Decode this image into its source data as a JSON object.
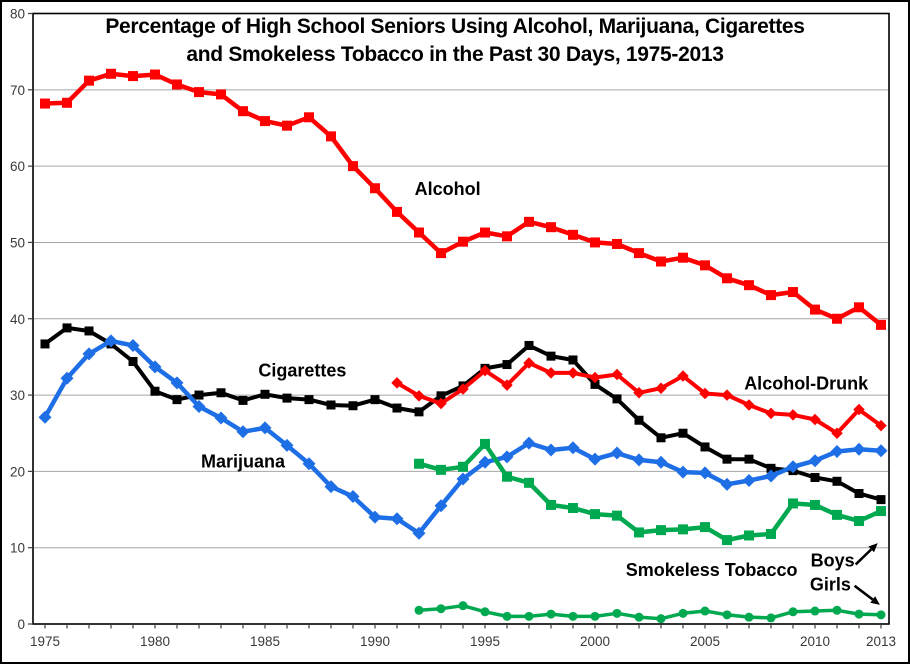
{
  "title": {
    "line1": "Percentage of High School Seniors Using Alcohol, Marijuana, Cigarettes",
    "line2": "and Smokeless Tobacco in the Past 30 Days, 1975-2013"
  },
  "chart_data": {
    "type": "line",
    "title": "Percentage of High School Seniors Using Alcohol, Marijuana, Cigarettes and Smokeless Tobacco in the Past 30 Days, 1975-2013",
    "xlabel": "",
    "ylabel": "",
    "xlim": [
      1975,
      2013
    ],
    "ylim": [
      0,
      80
    ],
    "xticks": [
      1975,
      1980,
      1985,
      1990,
      1995,
      2000,
      2005,
      2010,
      2013
    ],
    "yticks": [
      0,
      10,
      20,
      30,
      40,
      50,
      60,
      70,
      80
    ],
    "grid": true,
    "legend_position": "inline-labels",
    "colors": {
      "alcohol": "#FF0000",
      "cigarettes": "#000000",
      "marijuana": "#1E6FE6",
      "alcohol_drunk": "#FF0000",
      "smokeless": "#00A950",
      "axis_text": "#3A3A3A",
      "gridline": "#A6A6A6",
      "annotation_text": "#000000"
    },
    "series": [
      {
        "name": "Alcohol",
        "color_key": "alcohol",
        "marker": "square",
        "marker_size": 10,
        "line_width": 4.5,
        "start_year": 1975,
        "values": [
          68.2,
          68.3,
          71.2,
          72.1,
          71.8,
          72.0,
          70.7,
          69.7,
          69.4,
          67.2,
          65.9,
          65.3,
          66.4,
          63.9,
          60.0,
          57.1,
          54.0,
          51.3,
          48.6,
          50.1,
          51.3,
          50.8,
          52.7,
          52.0,
          51.0,
          50.0,
          49.8,
          48.6,
          47.5,
          48.0,
          47.0,
          45.3,
          44.4,
          43.1,
          43.5,
          41.2,
          40.0,
          41.5,
          39.2
        ]
      },
      {
        "name": "Cigarettes",
        "color_key": "cigarettes",
        "marker": "square",
        "marker_size": 9,
        "line_width": 4,
        "start_year": 1975,
        "values": [
          36.7,
          38.8,
          38.4,
          36.7,
          34.4,
          30.5,
          29.4,
          30.0,
          30.3,
          29.3,
          30.1,
          29.6,
          29.4,
          28.7,
          28.6,
          29.4,
          28.3,
          27.8,
          29.9,
          31.2,
          33.5,
          34.0,
          36.5,
          35.1,
          34.6,
          31.4,
          29.5,
          26.7,
          24.4,
          25.0,
          23.2,
          21.6,
          21.6,
          20.4,
          20.1,
          19.2,
          18.7,
          17.1,
          16.3
        ]
      },
      {
        "name": "Marijuana",
        "color_key": "marijuana",
        "marker": "diamond",
        "marker_size": 13,
        "line_width": 4.5,
        "start_year": 1975,
        "values": [
          27.1,
          32.2,
          35.4,
          37.1,
          36.5,
          33.7,
          31.6,
          28.5,
          27.0,
          25.2,
          25.7,
          23.4,
          21.0,
          18.0,
          16.7,
          14.0,
          13.8,
          11.9,
          15.5,
          19.0,
          21.2,
          21.9,
          23.7,
          22.8,
          23.1,
          21.6,
          22.4,
          21.5,
          21.2,
          19.9,
          19.8,
          18.3,
          18.8,
          19.4,
          20.6,
          21.4,
          22.6,
          22.9,
          22.7
        ]
      },
      {
        "name": "Alcohol-Drunk",
        "color_key": "alcohol_drunk",
        "marker": "diamond",
        "marker_size": 11.5,
        "line_width": 4,
        "start_year": 1991,
        "values": [
          31.6,
          29.9,
          28.9,
          30.8,
          33.2,
          31.3,
          34.2,
          32.9,
          32.9,
          32.3,
          32.7,
          30.3,
          30.9,
          32.5,
          30.2,
          30.0,
          28.7,
          27.6,
          27.4,
          26.8,
          25.0,
          28.1,
          26.0
        ]
      },
      {
        "name": "Smokeless Tobacco (Boys)",
        "color_key": "smokeless",
        "marker": "square",
        "marker_size": 10,
        "line_width": 4.5,
        "start_year": 1992,
        "values": [
          21.0,
          20.2,
          20.6,
          23.6,
          19.3,
          18.5,
          15.6,
          15.2,
          14.4,
          14.2,
          12.0,
          12.3,
          12.4,
          12.7,
          11.0,
          11.6,
          11.8,
          15.8,
          15.6,
          14.3,
          13.5,
          14.8
        ]
      },
      {
        "name": "Smokeless Tobacco (Girls)",
        "color_key": "smokeless",
        "marker": "circle",
        "marker_size": 9,
        "line_width": 3.5,
        "start_year": 1992,
        "values": [
          1.8,
          2.0,
          2.4,
          1.6,
          1.0,
          1.0,
          1.3,
          1.0,
          1.0,
          1.4,
          0.9,
          0.7,
          1.4,
          1.7,
          1.2,
          0.9,
          0.8,
          1.6,
          1.7,
          1.8,
          1.3,
          1.2
        ]
      }
    ],
    "annotations": [
      {
        "text": "Alcohol",
        "year": 1993.3,
        "value": 57.0
      },
      {
        "text": "Cigarettes",
        "year": 1986.7,
        "value": 33.2
      },
      {
        "text": "Marijuana",
        "year": 1984.0,
        "value": 21.3
      },
      {
        "text": "Alcohol-Drunk",
        "year": 2009.6,
        "value": 31.5
      },
      {
        "text": "Smokeless Tobacco",
        "year": 2005.3,
        "value": 7.1
      },
      {
        "text": "Boys",
        "year": 2010.8,
        "value": 8.3
      },
      {
        "text": "Girls",
        "year": 2010.7,
        "value": 5.2
      }
    ],
    "arrows": [
      {
        "name": "boys-arrow",
        "from_year": 2011.85,
        "from_value": 7.8,
        "to_year": 2012.85,
        "to_value": 10.6
      },
      {
        "name": "girls-arrow",
        "from_year": 2011.8,
        "from_value": 5.0,
        "to_year": 2012.95,
        "to_value": 2.5
      }
    ]
  }
}
